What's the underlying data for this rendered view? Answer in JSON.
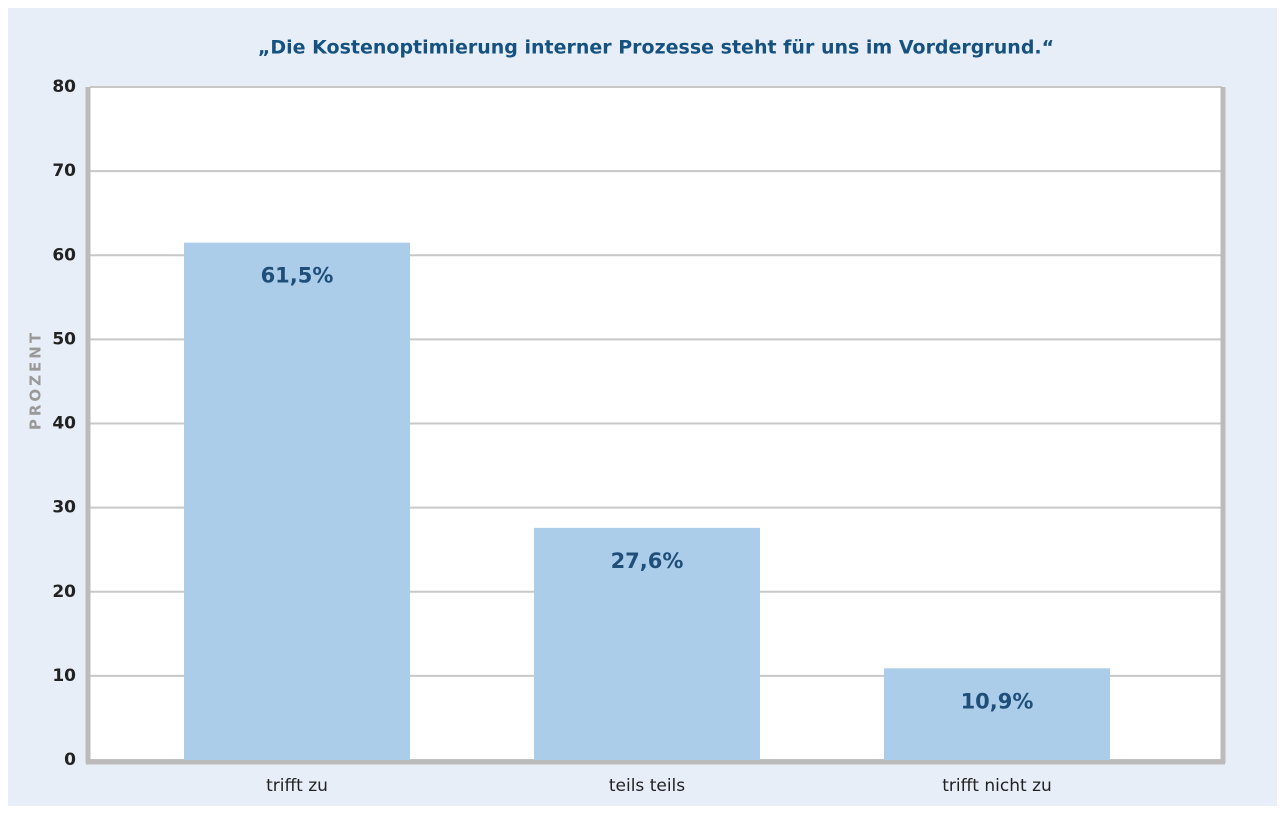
{
  "chart_data": {
    "type": "bar",
    "title": "„Die Kostenoptimierung interner Prozesse steht für uns im Vordergrund.“",
    "y_label": "PROZENT",
    "categories": [
      "trifft zu",
      "teils teils",
      "trifft nicht zu"
    ],
    "values": [
      61.5,
      27.6,
      10.9
    ],
    "value_labels": [
      "61,5%",
      "27,6%",
      "10,9%"
    ],
    "color": "#abcdea",
    "ylim": [
      0,
      80
    ],
    "yticks": [
      0,
      10,
      20,
      30,
      40,
      50,
      60,
      70,
      80
    ],
    "grid": true
  }
}
